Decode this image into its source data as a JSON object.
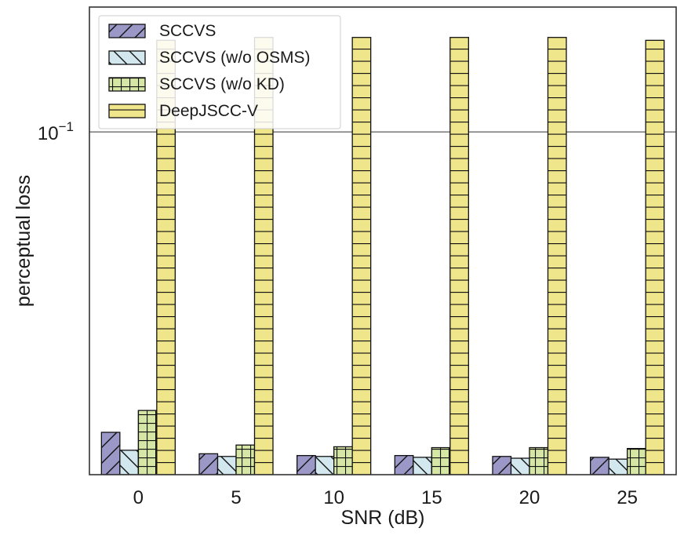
{
  "chart_data": {
    "type": "bar",
    "title": "",
    "xlabel": "SNR (dB)",
    "ylabel": "perceptual loss",
    "yscale": "log",
    "ylim": [
      0.0397,
      0.14
    ],
    "yticks": [
      {
        "value": 0.1,
        "base": "10",
        "exponent": "−1"
      }
    ],
    "grid": true,
    "legend_position": "top-left",
    "categories": [
      "0",
      "5",
      "10",
      "15",
      "20",
      "25"
    ],
    "series": [
      {
        "name": "SCCVS",
        "color": "#9b98c8",
        "hatch": "diagonal-forward",
        "values": [
          0.0445,
          0.042,
          0.0418,
          0.0418,
          0.0417,
          0.0416
        ]
      },
      {
        "name": "SCCVS (w/o OSMS)",
        "color": "#d3e8ee",
        "hatch": "diagonal-back",
        "values": [
          0.0424,
          0.0417,
          0.0417,
          0.0416,
          0.0415,
          0.0414
        ]
      },
      {
        "name": "SCCVS (w/o KD)",
        "color": "#d6e6a4",
        "hatch": "grid",
        "values": [
          0.0472,
          0.043,
          0.0428,
          0.0427,
          0.0427,
          0.0426
        ]
      },
      {
        "name": "DeepJSCC-V",
        "color": "#efe58a",
        "hatch": "horizontal",
        "values": [
          0.128,
          0.129,
          0.129,
          0.129,
          0.129,
          0.128
        ]
      }
    ]
  }
}
